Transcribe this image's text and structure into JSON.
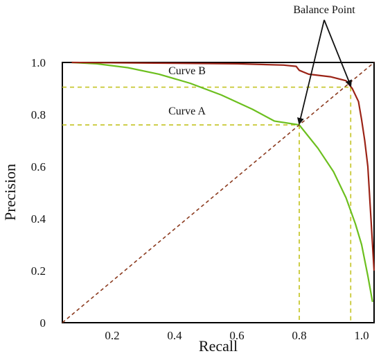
{
  "chart_data": {
    "type": "line",
    "title": "",
    "xlabel": "Recall",
    "ylabel": "Precision",
    "xlim": [
      0.04,
      1.04
    ],
    "ylim": [
      0,
      1.0
    ],
    "x_ticks": [
      {
        "value": 0.2,
        "label": "0.2"
      },
      {
        "value": 0.4,
        "label": "0.4"
      },
      {
        "value": 0.6,
        "label": "0.6"
      },
      {
        "value": 0.8,
        "label": "0.8"
      },
      {
        "value": 1.0,
        "label": "1.0"
      }
    ],
    "y_ticks": [
      {
        "value": 0,
        "label": "0"
      },
      {
        "value": 0.2,
        "label": "0.2"
      },
      {
        "value": 0.4,
        "label": "0.4"
      },
      {
        "value": 0.6,
        "label": "0.6"
      },
      {
        "value": 0.8,
        "label": "0.8"
      },
      {
        "value": 1.0,
        "label": "1.0"
      }
    ],
    "grid": false,
    "series": [
      {
        "name": "Curve A",
        "color": "#6cbf1e",
        "x": [
          0.07,
          0.15,
          0.25,
          0.35,
          0.45,
          0.55,
          0.65,
          0.72,
          0.8,
          0.86,
          0.91,
          0.95,
          0.98,
          1.0,
          1.02,
          1.035
        ],
        "y": [
          1.0,
          0.995,
          0.98,
          0.955,
          0.92,
          0.875,
          0.82,
          0.775,
          0.76,
          0.67,
          0.58,
          0.48,
          0.38,
          0.3,
          0.18,
          0.08
        ]
      },
      {
        "name": "Curve B",
        "color": "#9b2316",
        "x": [
          0.07,
          0.3,
          0.6,
          0.75,
          0.79,
          0.8,
          0.83,
          0.9,
          0.95,
          0.97,
          0.99,
          1.0,
          1.01,
          1.02,
          1.03,
          1.04
        ],
        "y": [
          1.0,
          0.998,
          0.995,
          0.99,
          0.985,
          0.97,
          0.955,
          0.945,
          0.93,
          0.9,
          0.85,
          0.78,
          0.7,
          0.6,
          0.4,
          0.2
        ]
      },
      {
        "name": "",
        "color": "#8b3a1e",
        "style": "dashed",
        "x": [
          0.04,
          1.04
        ],
        "y": [
          0.0,
          1.0
        ]
      }
    ],
    "reference_lines": {
      "color": "#c8c832",
      "style": "dashed",
      "points": [
        {
          "x": 0.8,
          "y": 0.76
        },
        {
          "x": 0.965,
          "y": 0.905
        }
      ]
    },
    "annotations": [
      {
        "text": "Curve B",
        "x": 0.44,
        "y": 0.955
      },
      {
        "text": "Curve A",
        "x": 0.44,
        "y": 0.8
      },
      {
        "text": "Balance Point",
        "x": 0.88,
        "y": 1.19,
        "arrows_to": [
          {
            "x": 0.8,
            "y": 0.76
          },
          {
            "x": 0.965,
            "y": 0.905
          }
        ]
      }
    ]
  }
}
